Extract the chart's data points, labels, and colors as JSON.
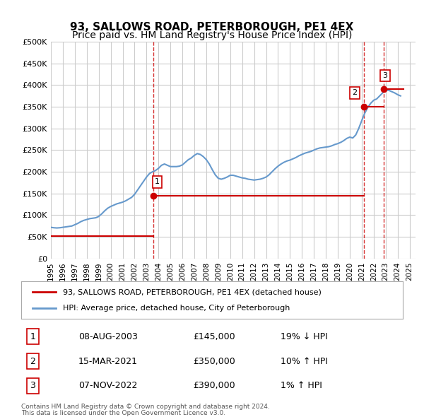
{
  "title": "93, SALLOWS ROAD, PETERBOROUGH, PE1 4EX",
  "subtitle": "Price paid vs. HM Land Registry's House Price Index (HPI)",
  "ylabel_ticks": [
    "£0",
    "£50K",
    "£100K",
    "£150K",
    "£200K",
    "£250K",
    "£300K",
    "£350K",
    "£400K",
    "£450K",
    "£500K"
  ],
  "ytick_vals": [
    0,
    50000,
    100000,
    150000,
    200000,
    250000,
    300000,
    350000,
    400000,
    450000,
    500000
  ],
  "ylim": [
    0,
    500000
  ],
  "xlim_start": 1995.0,
  "xlim_end": 2025.5,
  "hpi_color": "#6699cc",
  "price_color": "#cc0000",
  "dashed_color": "#cc0000",
  "transactions": [
    {
      "label": "1",
      "date": "08-AUG-2003",
      "price": 145000,
      "x": 2003.6,
      "hpi_note": "19% ↓ HPI"
    },
    {
      "label": "2",
      "date": "15-MAR-2021",
      "price": 350000,
      "x": 2021.2,
      "hpi_note": "10% ↑ HPI"
    },
    {
      "label": "3",
      "date": "07-NOV-2022",
      "price": 390000,
      "x": 2022.85,
      "hpi_note": "1% ↑ HPI"
    }
  ],
  "legend_line1": "93, SALLOWS ROAD, PETERBOROUGH, PE1 4EX (detached house)",
  "legend_line2": "HPI: Average price, detached house, City of Peterborough",
  "footer1": "Contains HM Land Registry data © Crown copyright and database right 2024.",
  "footer2": "This data is licensed under the Open Government Licence v3.0.",
  "hpi_data_x": [
    1995.0,
    1995.25,
    1995.5,
    1995.75,
    1996.0,
    1996.25,
    1996.5,
    1996.75,
    1997.0,
    1997.25,
    1997.5,
    1997.75,
    1998.0,
    1998.25,
    1998.5,
    1998.75,
    1999.0,
    1999.25,
    1999.5,
    1999.75,
    2000.0,
    2000.25,
    2000.5,
    2000.75,
    2001.0,
    2001.25,
    2001.5,
    2001.75,
    2002.0,
    2002.25,
    2002.5,
    2002.75,
    2003.0,
    2003.25,
    2003.5,
    2003.75,
    2004.0,
    2004.25,
    2004.5,
    2004.75,
    2005.0,
    2005.25,
    2005.5,
    2005.75,
    2006.0,
    2006.25,
    2006.5,
    2006.75,
    2007.0,
    2007.25,
    2007.5,
    2007.75,
    2008.0,
    2008.25,
    2008.5,
    2008.75,
    2009.0,
    2009.25,
    2009.5,
    2009.75,
    2010.0,
    2010.25,
    2010.5,
    2010.75,
    2011.0,
    2011.25,
    2011.5,
    2011.75,
    2012.0,
    2012.25,
    2012.5,
    2012.75,
    2013.0,
    2013.25,
    2013.5,
    2013.75,
    2014.0,
    2014.25,
    2014.5,
    2014.75,
    2015.0,
    2015.25,
    2015.5,
    2015.75,
    2016.0,
    2016.25,
    2016.5,
    2016.75,
    2017.0,
    2017.25,
    2017.5,
    2017.75,
    2018.0,
    2018.25,
    2018.5,
    2018.75,
    2019.0,
    2019.25,
    2019.5,
    2019.75,
    2020.0,
    2020.25,
    2020.5,
    2020.75,
    2021.0,
    2021.25,
    2021.5,
    2021.75,
    2022.0,
    2022.25,
    2022.5,
    2022.75,
    2023.0,
    2023.25,
    2023.5,
    2023.75,
    2024.0,
    2024.25
  ],
  "hpi_data_y": [
    72000,
    71000,
    70500,
    71000,
    72000,
    73000,
    74000,
    75000,
    78000,
    81000,
    85000,
    88000,
    90000,
    92000,
    93000,
    94000,
    97000,
    103000,
    110000,
    116000,
    120000,
    123000,
    126000,
    128000,
    130000,
    133000,
    137000,
    141000,
    148000,
    158000,
    168000,
    178000,
    188000,
    196000,
    200000,
    203000,
    208000,
    215000,
    218000,
    215000,
    212000,
    212000,
    212000,
    213000,
    216000,
    222000,
    228000,
    232000,
    238000,
    242000,
    240000,
    235000,
    228000,
    218000,
    205000,
    193000,
    185000,
    183000,
    185000,
    188000,
    192000,
    192000,
    190000,
    188000,
    186000,
    185000,
    183000,
    182000,
    181000,
    182000,
    183000,
    185000,
    188000,
    193000,
    200000,
    207000,
    213000,
    218000,
    222000,
    225000,
    227000,
    230000,
    233000,
    237000,
    240000,
    243000,
    245000,
    247000,
    250000,
    253000,
    255000,
    256000,
    257000,
    258000,
    260000,
    263000,
    265000,
    268000,
    272000,
    277000,
    280000,
    278000,
    285000,
    300000,
    318000,
    335000,
    348000,
    358000,
    365000,
    368000,
    375000,
    382000,
    388000,
    388000,
    385000,
    382000,
    378000,
    375000
  ],
  "price_segments": [
    {
      "x_start": 1995.0,
      "x_end": 2003.6,
      "y": 52000
    },
    {
      "x_start": 2003.6,
      "x_end": 2021.2,
      "y": 145000
    },
    {
      "x_start": 2021.2,
      "x_end": 2022.85,
      "y": 350000
    },
    {
      "x_start": 2022.85,
      "x_end": 2024.5,
      "y": 390000
    }
  ],
  "background_color": "#ffffff",
  "grid_color": "#cccccc",
  "title_fontsize": 11,
  "subtitle_fontsize": 10
}
